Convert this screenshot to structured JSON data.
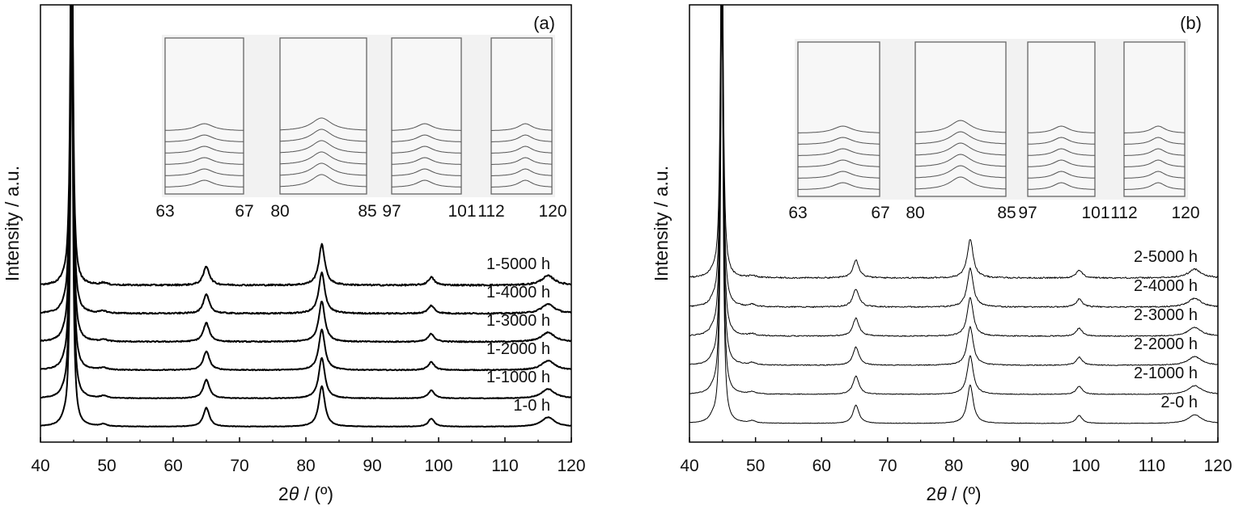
{
  "chart_data": [
    {
      "type": "line",
      "panel_label": "(a)",
      "xlabel_prefix": "2",
      "xlabel_theta": "θ",
      "xlabel_suffix": " / (º)",
      "ylabel": "Intensity / a.u.",
      "xlim": [
        40,
        120
      ],
      "x_ticks": [
        40,
        50,
        60,
        70,
        80,
        90,
        100,
        110,
        120
      ],
      "stroke_color": "#000000",
      "peaks": [
        {
          "position": 43.5,
          "height": 0.5
        },
        {
          "position": 44.7,
          "height": 60
        },
        {
          "position": 49.5,
          "height": 0.3
        },
        {
          "position": 65.0,
          "height": 2.6
        },
        {
          "position": 82.4,
          "height": 5.6
        },
        {
          "position": 98.9,
          "height": 1.1
        },
        {
          "position": 116.5,
          "height": 1.3
        }
      ],
      "series": [
        {
          "name": "1-0 h",
          "label": "1-0 h"
        },
        {
          "name": "1-1000 h",
          "label": "1-1000 h"
        },
        {
          "name": "1-2000 h",
          "label": "1-2000 h"
        },
        {
          "name": "1-3000 h",
          "label": "1-3000 h"
        },
        {
          "name": "1-4000 h",
          "label": "1-4000 h"
        },
        {
          "name": "1-5000 h",
          "label": "1-5000 h"
        }
      ],
      "inset": {
        "windows": [
          {
            "range": [
              63,
              67
            ],
            "tick_labels": [
              "63",
              "67"
            ],
            "peak_at": 65.0
          },
          {
            "range": [
              80,
              85
            ],
            "tick_labels": [
              "80",
              "85"
            ],
            "peak_at": 82.4
          },
          {
            "range": [
              97,
              101
            ],
            "tick_labels": [
              "97",
              "101"
            ],
            "peak_at": 98.9
          },
          {
            "range": [
              112,
              120
            ],
            "tick_labels": [
              "112",
              "120"
            ],
            "peak_at": 116.5
          }
        ]
      }
    },
    {
      "type": "line",
      "panel_label": "(b)",
      "xlabel_prefix": "2",
      "xlabel_theta": "θ",
      "xlabel_suffix": " / (º)",
      "ylabel": "Intensity / a.u.",
      "xlim": [
        40,
        120
      ],
      "x_ticks": [
        40,
        50,
        60,
        70,
        80,
        90,
        100,
        110,
        120
      ],
      "stroke_color": "#000000",
      "peaks": [
        {
          "position": 43.5,
          "height": 0.5
        },
        {
          "position": 44.9,
          "height": 60
        },
        {
          "position": 49.5,
          "height": 0.3
        },
        {
          "position": 65.2,
          "height": 2.5
        },
        {
          "position": 82.5,
          "height": 5.3
        },
        {
          "position": 99.0,
          "height": 1.1
        },
        {
          "position": 116.5,
          "height": 1.2
        }
      ],
      "series": [
        {
          "name": "2-0 h",
          "label": "2-0 h"
        },
        {
          "name": "2-1000 h",
          "label": "2-1000 h"
        },
        {
          "name": "2-2000 h",
          "label": "2-2000 h"
        },
        {
          "name": "2-3000 h",
          "label": "2-3000 h"
        },
        {
          "name": "2-4000 h",
          "label": "2-4000 h"
        },
        {
          "name": "2-5000 h",
          "label": "2-5000 h"
        }
      ],
      "inset": {
        "windows": [
          {
            "range": [
              63,
              67
            ],
            "tick_labels": [
              "63",
              "67"
            ],
            "peak_at": 65.2
          },
          {
            "range": [
              80,
              85
            ],
            "tick_labels": [
              "80",
              "85"
            ],
            "peak_at": 82.5
          },
          {
            "range": [
              97,
              101
            ],
            "tick_labels": [
              "97",
              "101"
            ],
            "peak_at": 99.0
          },
          {
            "range": [
              112,
              120
            ],
            "tick_labels": [
              "112",
              "120"
            ],
            "peak_at": 116.5
          }
        ]
      }
    }
  ]
}
